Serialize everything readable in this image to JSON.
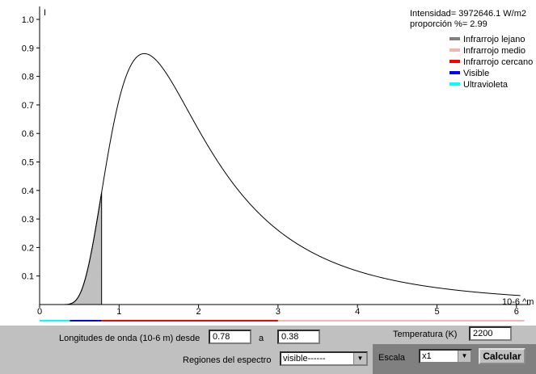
{
  "chart_data": {
    "type": "area",
    "xlabel": "10-6 ^m",
    "ylabel": "I",
    "xlim": [
      0,
      6.1
    ],
    "ylim": [
      0,
      1.02
    ],
    "x_ticks": [
      "0",
      "1",
      "2",
      "3",
      "4",
      "5",
      "6"
    ],
    "y_ticks": [
      "0.1",
      "0.2",
      "0.3",
      "0.4",
      "0.5",
      "0.6",
      "0.7",
      "0.8",
      "0.9",
      "1.0"
    ],
    "temperature_k": 2200,
    "peak_x": 1.32,
    "peak_y": 0.88,
    "shaded_range": [
      0.38,
      0.78
    ],
    "info": [
      "Intensidad= 3972646.1 W/m2",
      "proporción %= 2.99"
    ],
    "legend": [
      {
        "label": "Infrarrojo lejano",
        "color": "#808080"
      },
      {
        "label": "Infrarrojo medio",
        "color": "#f4b4b4"
      },
      {
        "label": "Infrarrojo cercano",
        "color": "#ff0000"
      },
      {
        "label": "Visible",
        "color": "#0000ff"
      },
      {
        "label": "Ultravioleta",
        "color": "#00ffff"
      }
    ],
    "spectrum_bar": [
      {
        "from": 0.0,
        "to": 0.38,
        "color": "#00ffff"
      },
      {
        "from": 0.38,
        "to": 0.78,
        "color": "#0000ff"
      },
      {
        "from": 0.78,
        "to": 3.0,
        "color": "#ff0000"
      },
      {
        "from": 3.0,
        "to": 6.1,
        "color": "#f4b4b4"
      }
    ],
    "grid": false
  },
  "controls": {
    "wavelength_label": "Longitudes de onda (10-6 m) desde",
    "wavelength_from": "0.78",
    "to_label": "a",
    "wavelength_to": "0.38",
    "temperature_label": "Temperatura (K)",
    "temperature_value": "2200",
    "regions_label": "Regiones del espectro",
    "regions_value": "visible------",
    "scale_label": "Escala",
    "scale_value": "x1",
    "calculate_label": "Calcular"
  }
}
